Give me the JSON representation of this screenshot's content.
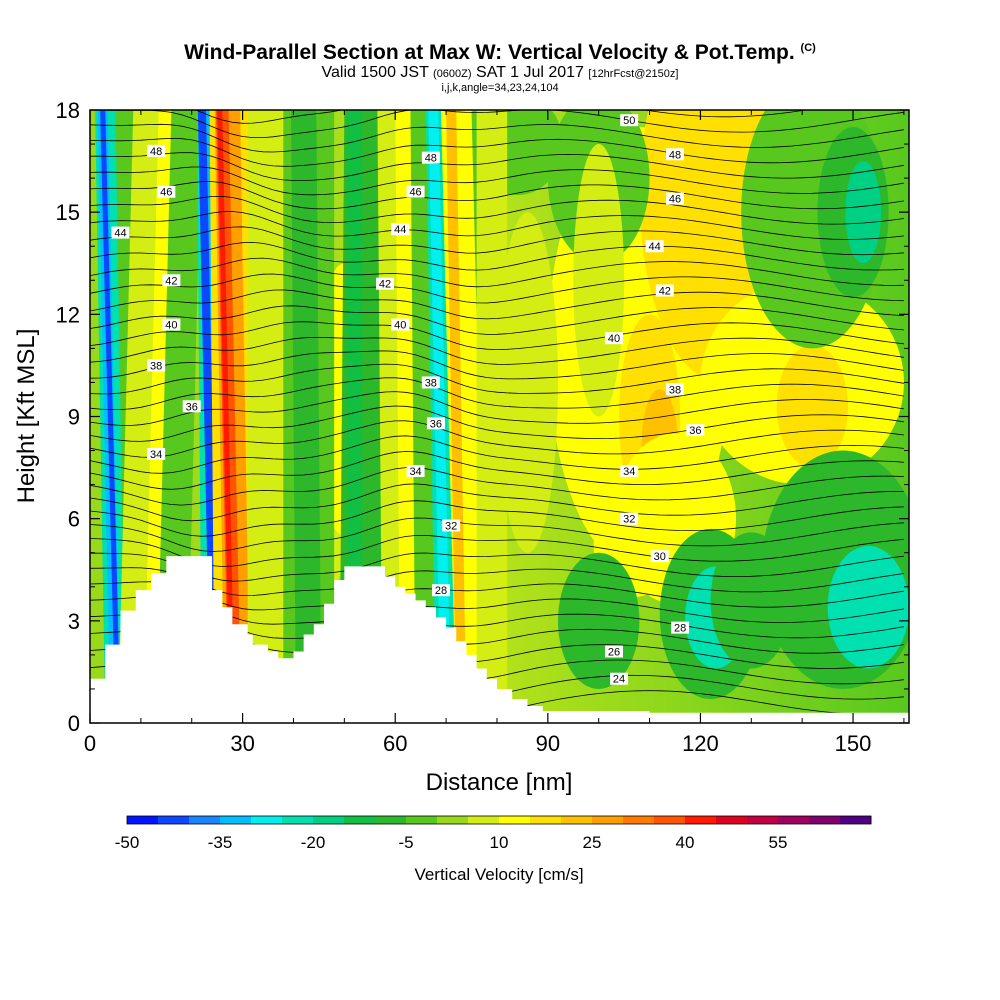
{
  "title": {
    "main": "Wind-Parallel Section at Max W: Vertical Velocity & Pot.Temp.",
    "main_units": "(C)",
    "valid_prefix": "Valid 1500 JST",
    "valid_zulu": "(0600Z)",
    "valid_date": "SAT 1 Jul 2017",
    "forecast": "[12hrFcst@2150z]",
    "indices": "i,j,k,angle=34,23,24,104"
  },
  "chart_data": {
    "type": "heatmap",
    "xlabel": "Distance [nm]",
    "ylabel": "Height [Kft MSL]",
    "xlim": [
      0,
      161
    ],
    "ylim": [
      0,
      18
    ],
    "x_ticks": [
      0,
      30,
      60,
      90,
      120,
      150
    ],
    "y_ticks": [
      0,
      3,
      6,
      9,
      12,
      15,
      18
    ],
    "colorbar": {
      "label": "Vertical Velocity [cm/s]",
      "range": [
        -50,
        70
      ],
      "step": 5,
      "tick_values": [
        -50,
        -35,
        -20,
        -5,
        10,
        25,
        40,
        55
      ],
      "colors": [
        "#0015ff",
        "#0c48ff",
        "#1b85ff",
        "#00bfff",
        "#00f0f0",
        "#00e0b0",
        "#00d084",
        "#11c043",
        "#2db82b",
        "#58c81e",
        "#98d91b",
        "#d4ee14",
        "#ffff00",
        "#ffe000",
        "#ffc000",
        "#ffa000",
        "#ff7a00",
        "#ff5500",
        "#ff1a00",
        "#e00020",
        "#c00040",
        "#a00060",
        "#800070",
        "#500080"
      ]
    },
    "contour_field": "potential temperature (C)",
    "contour_labels": [
      {
        "x": 13,
        "y": 16.8,
        "v": "48"
      },
      {
        "x": 15,
        "y": 15.6,
        "v": "46"
      },
      {
        "x": 6,
        "y": 14.4,
        "v": "44"
      },
      {
        "x": 16,
        "y": 13.0,
        "v": "42"
      },
      {
        "x": 16,
        "y": 11.7,
        "v": "40"
      },
      {
        "x": 13,
        "y": 10.5,
        "v": "38"
      },
      {
        "x": 20,
        "y": 9.3,
        "v": "36"
      },
      {
        "x": 13,
        "y": 7.9,
        "v": "34"
      },
      {
        "x": 67,
        "y": 16.6,
        "v": "48"
      },
      {
        "x": 64,
        "y": 15.6,
        "v": "46"
      },
      {
        "x": 61,
        "y": 14.5,
        "v": "44"
      },
      {
        "x": 58,
        "y": 12.9,
        "v": "42"
      },
      {
        "x": 61,
        "y": 11.7,
        "v": "40"
      },
      {
        "x": 67,
        "y": 10.0,
        "v": "38"
      },
      {
        "x": 68,
        "y": 8.8,
        "v": "36"
      },
      {
        "x": 64,
        "y": 7.4,
        "v": "34"
      },
      {
        "x": 71,
        "y": 5.8,
        "v": "32"
      },
      {
        "x": 69,
        "y": 3.9,
        "v": "28"
      },
      {
        "x": 106,
        "y": 17.7,
        "v": "50"
      },
      {
        "x": 115,
        "y": 16.7,
        "v": "48"
      },
      {
        "x": 115,
        "y": 15.4,
        "v": "46"
      },
      {
        "x": 111,
        "y": 14.0,
        "v": "44"
      },
      {
        "x": 113,
        "y": 12.7,
        "v": "42"
      },
      {
        "x": 103,
        "y": 11.3,
        "v": "40"
      },
      {
        "x": 115,
        "y": 9.8,
        "v": "38"
      },
      {
        "x": 119,
        "y": 8.6,
        "v": "36"
      },
      {
        "x": 106,
        "y": 7.4,
        "v": "34"
      },
      {
        "x": 106,
        "y": 6.0,
        "v": "32"
      },
      {
        "x": 112,
        "y": 4.9,
        "v": "30"
      },
      {
        "x": 116,
        "y": 2.8,
        "v": "28"
      },
      {
        "x": 103,
        "y": 2.1,
        "v": "26"
      },
      {
        "x": 104,
        "y": 1.3,
        "v": "24"
      }
    ]
  }
}
